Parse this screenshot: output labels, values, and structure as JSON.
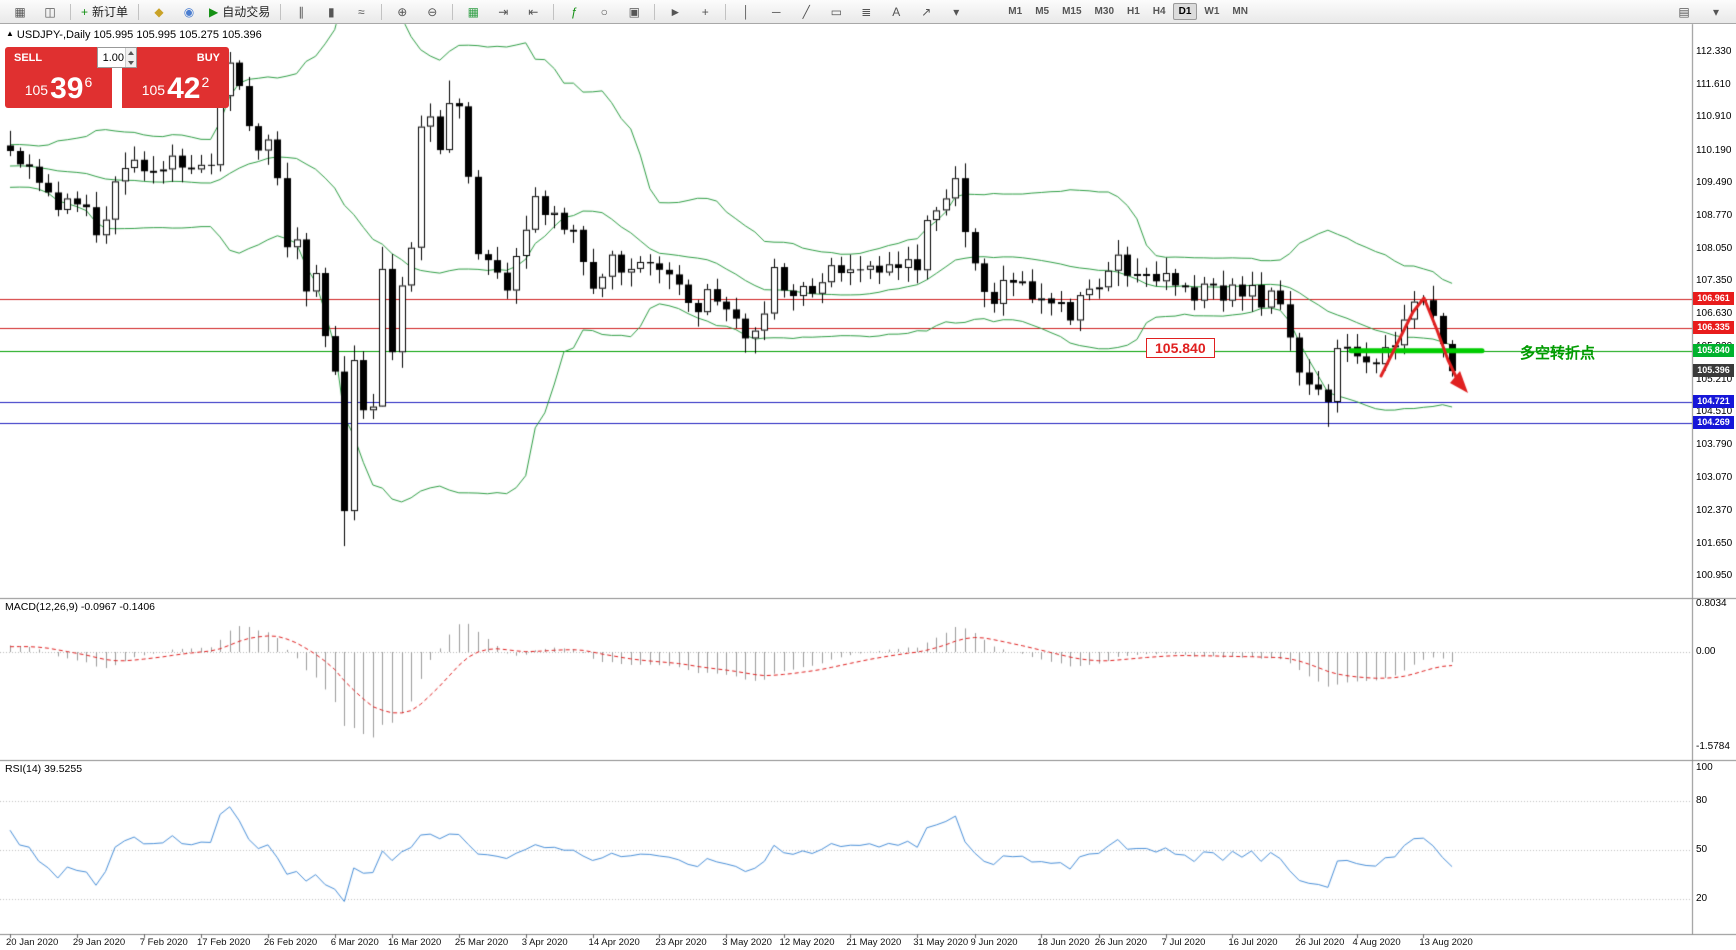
{
  "header": {
    "marker": "▲",
    "ohlc_line": "USDJPY-,Daily  105.995 105.995 105.275 105.396"
  },
  "toolbar": {
    "items": [
      {
        "type": "icon",
        "name": "chart-window-icon",
        "glyph": "▦"
      },
      {
        "type": "icon",
        "name": "profiles-icon",
        "glyph": "◫"
      },
      {
        "type": "sep"
      },
      {
        "type": "button",
        "name": "new-order-button",
        "glyph": "+",
        "glyph_color": "#149014",
        "label": "新订单"
      },
      {
        "type": "sep"
      },
      {
        "type": "icon",
        "name": "mql5-icon",
        "glyph": "◆",
        "glyph_color": "#c9a227"
      },
      {
        "type": "icon",
        "name": "signals-icon",
        "glyph": "◉",
        "glyph_color": "#4a7dd0"
      },
      {
        "type": "button",
        "name": "autotrading-button",
        "glyph": "▶",
        "glyph_color": "#149014",
        "label": "自动交易"
      },
      {
        "type": "sep"
      },
      {
        "type": "icon",
        "name": "bar-chart-icon",
        "glyph": "∥"
      },
      {
        "type": "icon",
        "name": "candlestick-icon",
        "glyph": "▮"
      },
      {
        "type": "icon",
        "name": "line-chart-icon",
        "glyph": "≈"
      },
      {
        "type": "sep"
      },
      {
        "type": "icon",
        "name": "zoom-in-icon",
        "glyph": "⊕"
      },
      {
        "type": "icon",
        "name": "zoom-out-icon",
        "glyph": "⊖"
      },
      {
        "type": "sep"
      },
      {
        "type": "icon",
        "name": "tile-windows-icon",
        "glyph": "▦",
        "glyph_color": "#2f9e44"
      },
      {
        "type": "icon",
        "name": "auto-scroll-icon",
        "glyph": "⇥"
      },
      {
        "type": "icon",
        "name": "chart-shift-icon",
        "glyph": "⇤"
      },
      {
        "type": "sep"
      },
      {
        "type": "icon",
        "name": "indicators-icon",
        "glyph": "ƒ",
        "glyph_color": "#149014"
      },
      {
        "type": "icon",
        "name": "periods-icon",
        "glyph": "○"
      },
      {
        "type": "icon",
        "name": "templates-icon",
        "glyph": "▣"
      },
      {
        "type": "sep"
      },
      {
        "type": "icon",
        "name": "cursor-icon",
        "glyph": "►"
      },
      {
        "type": "icon",
        "name": "crosshair-icon",
        "glyph": "+"
      },
      {
        "type": "sep"
      },
      {
        "type": "icon",
        "name": "vertical-line-icon",
        "glyph": "│"
      },
      {
        "type": "icon",
        "name": "horizontal-line-icon",
        "glyph": "─"
      },
      {
        "type": "icon",
        "name": "trendline-icon",
        "glyph": "╱"
      },
      {
        "type": "icon",
        "name": "channel-icon",
        "glyph": "▭"
      },
      {
        "type": "icon",
        "name": "fibonacci-icon",
        "glyph": "≣"
      },
      {
        "type": "icon",
        "name": "text-icon",
        "glyph": "A"
      },
      {
        "type": "icon",
        "name": "arrows-icon",
        "glyph": "↗"
      },
      {
        "type": "icon",
        "name": "shapes-dropdown-icon",
        "glyph": "▾"
      }
    ],
    "timeframes": [
      "M1",
      "M5",
      "M15",
      "M30",
      "H1",
      "H4",
      "D1",
      "W1",
      "MN"
    ],
    "active_timeframe": "D1",
    "right_icons": [
      {
        "name": "panels-icon",
        "glyph": "▤"
      },
      {
        "name": "dropdown-icon",
        "glyph": "▾"
      }
    ]
  },
  "trade_panel": {
    "sell_label": "SELL",
    "buy_label": "BUY",
    "volume": "1.00",
    "sell_prefix": "105",
    "sell_big": "39",
    "sell_sup": "6",
    "buy_prefix": "105",
    "buy_big": "42",
    "buy_sup": "2"
  },
  "annotations": {
    "price_label": "105.840",
    "turning_point": "多空转折点"
  },
  "panels": {
    "macd_header": "MACD(12,26,9) -0.0967 -0.1406",
    "rsi_header": "RSI(14) 39.5255"
  },
  "chart_data": {
    "type": "candlestick",
    "symbol": "USDJPY-",
    "timeframe": "Daily",
    "ohlc": [
      105.995,
      105.995,
      105.275,
      105.396
    ],
    "current_price": 105.396,
    "ylim": [
      100.95,
      112.33
    ],
    "y_ticks": [
      "112.330",
      "111.610",
      "110.910",
      "110.190",
      "109.490",
      "108.770",
      "108.050",
      "107.350",
      "106.630",
      "105.920",
      "105.210",
      "104.510",
      "103.790",
      "103.070",
      "102.370",
      "101.650",
      "100.950"
    ],
    "x_ticks": [
      [
        "20 Jan 2020",
        0
      ],
      [
        "29 Jan 2020",
        7
      ],
      [
        "7 Feb 2020",
        14
      ],
      [
        "17 Feb 2020",
        20
      ],
      [
        "26 Feb 2020",
        27
      ],
      [
        "6 Mar 2020",
        34
      ],
      [
        "16 Mar 2020",
        40
      ],
      [
        "25 Mar 2020",
        47
      ],
      [
        "3 Apr 2020",
        54
      ],
      [
        "14 Apr 2020",
        61
      ],
      [
        "23 Apr 2020",
        68
      ],
      [
        "3 May 2020",
        75
      ],
      [
        "12 May 2020",
        81
      ],
      [
        "21 May 2020",
        88
      ],
      [
        "31 May 2020",
        95
      ],
      [
        "9 Jun 2020",
        101
      ],
      [
        "18 Jun 2020",
        108
      ],
      [
        "26 Jun 2020",
        114
      ],
      [
        "7 Jul 2020",
        121
      ],
      [
        "16 Jul 2020",
        128
      ],
      [
        "26 Jul 2020",
        135
      ],
      [
        "4 Aug 2020",
        141
      ],
      [
        "13 Aug 2020",
        148
      ]
    ],
    "first_open": 110.3,
    "pre_closes": [
      109.45,
      109.55,
      109.65,
      109.85,
      109.95,
      109.85,
      109.7,
      109.6,
      109.45,
      109.55,
      109.65,
      109.8,
      110.0,
      110.1,
      109.9,
      109.7,
      109.5,
      109.35,
      109.45,
      109.6,
      109.8,
      109.9,
      110.0,
      110.05,
      110.15,
      110.0,
      109.85,
      109.75,
      109.9,
      110.1
    ],
    "closes": [
      110.18,
      109.89,
      109.84,
      109.49,
      109.28,
      108.9,
      109.15,
      109.02,
      108.96,
      108.35,
      108.69,
      109.52,
      109.81,
      109.99,
      109.74,
      109.75,
      109.78,
      110.08,
      109.82,
      109.78,
      109.88,
      109.87,
      111.37,
      112.1,
      111.59,
      110.72,
      110.19,
      110.43,
      109.59,
      108.09,
      108.26,
      107.13,
      107.53,
      106.16,
      105.39,
      102.36,
      105.64,
      104.55,
      104.63,
      107.62,
      105.81,
      107.26,
      108.08,
      110.71,
      110.93,
      110.2,
      111.22,
      111.15,
      109.62,
      107.94,
      107.81,
      107.54,
      107.15,
      107.9,
      108.47,
      109.2,
      108.79,
      108.84,
      108.47,
      108.47,
      107.77,
      107.19,
      107.45,
      107.93,
      107.54,
      107.62,
      107.77,
      107.74,
      107.6,
      107.5,
      107.28,
      106.88,
      106.68,
      107.18,
      106.91,
      106.74,
      106.54,
      106.11,
      106.28,
      106.65,
      107.66,
      107.15,
      107.03,
      107.25,
      107.08,
      107.33,
      107.7,
      107.53,
      107.61,
      107.6,
      107.69,
      107.54,
      107.72,
      107.64,
      107.83,
      107.59,
      108.68,
      108.89,
      109.15,
      109.59,
      108.42,
      107.74,
      107.12,
      106.86,
      107.38,
      107.32,
      107.35,
      106.96,
      106.98,
      106.87,
      106.9,
      106.5,
      107.05,
      107.19,
      107.22,
      107.58,
      107.93,
      107.47,
      107.51,
      107.51,
      107.35,
      107.53,
      107.26,
      107.22,
      106.93,
      107.3,
      107.26,
      106.93,
      107.28,
      107.02,
      107.27,
      106.78,
      107.15,
      106.85,
      106.13,
      105.37,
      105.11,
      105.0,
      104.73,
      105.9,
      105.93,
      105.72,
      105.59,
      105.55,
      105.92,
      105.96,
      106.52,
      106.91,
      106.94,
      106.6,
      105.99,
      105.4
    ],
    "wick_overrides": {
      "22": {
        "h": 111.7
      },
      "23": {
        "h": 112.33
      },
      "24": {
        "h": 112.15
      },
      "35": {
        "l": 101.6
      },
      "39": {
        "h": 108.1,
        "l": 104.8
      },
      "43": {
        "h": 110.95
      },
      "46": {
        "h": 111.71
      },
      "99": {
        "h": 109.85
      },
      "138": {
        "l": 104.19
      },
      "139": {
        "l": 104.5
      },
      "148": {
        "h": 107.05
      },
      "151": {
        "l": 105.28
      }
    },
    "indicators": {
      "bollinger": {
        "period": 20,
        "deviation": 2,
        "color": "#2e9e44"
      },
      "macd": {
        "fast": 12,
        "slow": 26,
        "signal": 9,
        "values": [
          -0.0967,
          -0.1406
        ],
        "scale": [
          [
            "0.8034",
            0.8034
          ],
          [
            "0.00",
            0
          ],
          [
            "-1.5784",
            -1.5784
          ]
        ]
      },
      "rsi": {
        "period": 14,
        "value": 39.5255,
        "levels": [
          80,
          50,
          20
        ],
        "scale": [
          [
            "100",
            100
          ],
          [
            "80",
            80
          ],
          [
            "50",
            50
          ],
          [
            "20",
            20
          ]
        ]
      }
    },
    "hlines": [
      {
        "price": 106.961,
        "color": "#d02020"
      },
      {
        "price": 106.335,
        "color": "#d02020"
      },
      {
        "price": 105.84,
        "color": "#00a000"
      },
      {
        "price": 104.721,
        "color": "#2020c0"
      },
      {
        "price": 104.269,
        "color": "#2020c0"
      }
    ],
    "price_tags": [
      {
        "text": "106.961",
        "price": 106.961,
        "bg": "#e81c1c"
      },
      {
        "text": "106.335",
        "price": 106.335,
        "bg": "#e81c1c"
      },
      {
        "text": "105.840",
        "price": 105.84,
        "bg": "#00b22d"
      },
      {
        "text": "105.396",
        "price": 105.396,
        "bg": "#3a3a3a"
      },
      {
        "text": "104.721",
        "price": 104.721,
        "bg": "#1616d8"
      },
      {
        "text": "104.269",
        "price": 104.269,
        "bg": "#1616d8"
      }
    ]
  }
}
